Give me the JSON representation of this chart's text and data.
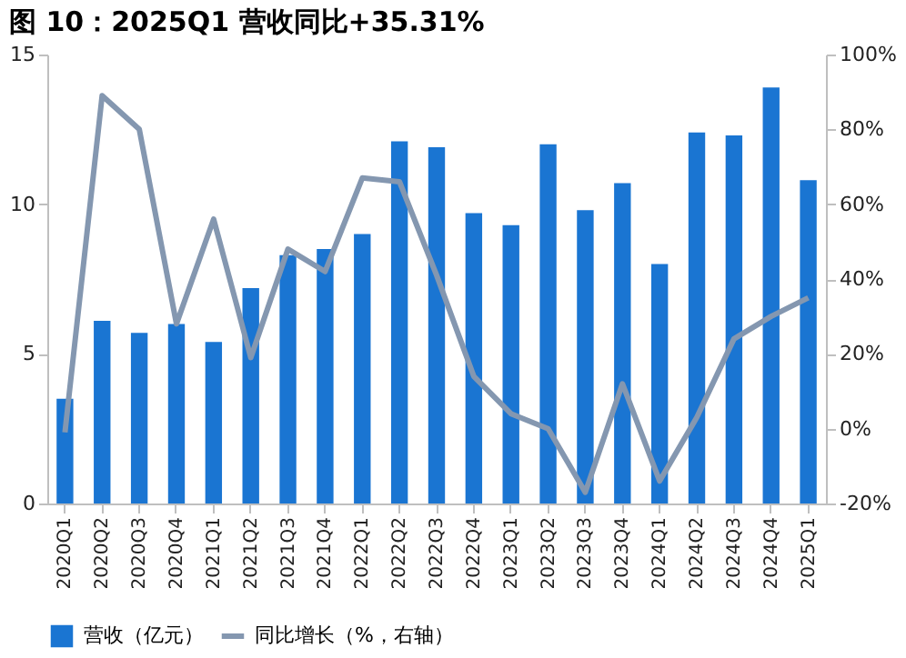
{
  "chart_data": {
    "type": "bar",
    "title": "图 10：2025Q1 营收同比+35.31%",
    "categories": [
      "2020Q1",
      "2020Q2",
      "2020Q3",
      "2020Q4",
      "2021Q1",
      "2021Q2",
      "2021Q3",
      "2021Q4",
      "2022Q1",
      "2022Q2",
      "2022Q3",
      "2022Q4",
      "2023Q1",
      "2023Q2",
      "2023Q3",
      "2023Q4",
      "2024Q1",
      "2024Q2",
      "2024Q3",
      "2024Q4",
      "2025Q1"
    ],
    "series": [
      {
        "name": "营收（亿元）",
        "color": "#1a75d2",
        "values": [
          3.5,
          6.1,
          5.7,
          6.0,
          5.4,
          7.2,
          8.3,
          8.5,
          9.0,
          12.1,
          11.9,
          9.7,
          9.3,
          12.0,
          9.8,
          10.7,
          8.0,
          12.4,
          12.3,
          13.9,
          10.8
        ]
      },
      {
        "name": "同比增长（%，右轴）",
        "type": "line",
        "axis": "y2",
        "color": "#8497b0",
        "values": [
          -1,
          89,
          80,
          28,
          56,
          19,
          48,
          42,
          67,
          66,
          41,
          14,
          4,
          0,
          -17,
          12,
          -14,
          3,
          24,
          30,
          35
        ]
      }
    ],
    "ylim": [
      0,
      15
    ],
    "yticks": [
      0,
      5,
      10,
      15
    ],
    "y2lim": [
      -20,
      100
    ],
    "y2ticks": [
      {
        "value": -20,
        "label": "-20%"
      },
      {
        "value": 0,
        "label": "0%"
      },
      {
        "value": 20,
        "label": "20%"
      },
      {
        "value": 40,
        "label": "40%"
      },
      {
        "value": 60,
        "label": "60%"
      },
      {
        "value": 80,
        "label": "80%"
      },
      {
        "value": 100,
        "label": "100%"
      }
    ],
    "grid": false,
    "legend": "bottom",
    "marker": "none",
    "line_style": "solid"
  }
}
